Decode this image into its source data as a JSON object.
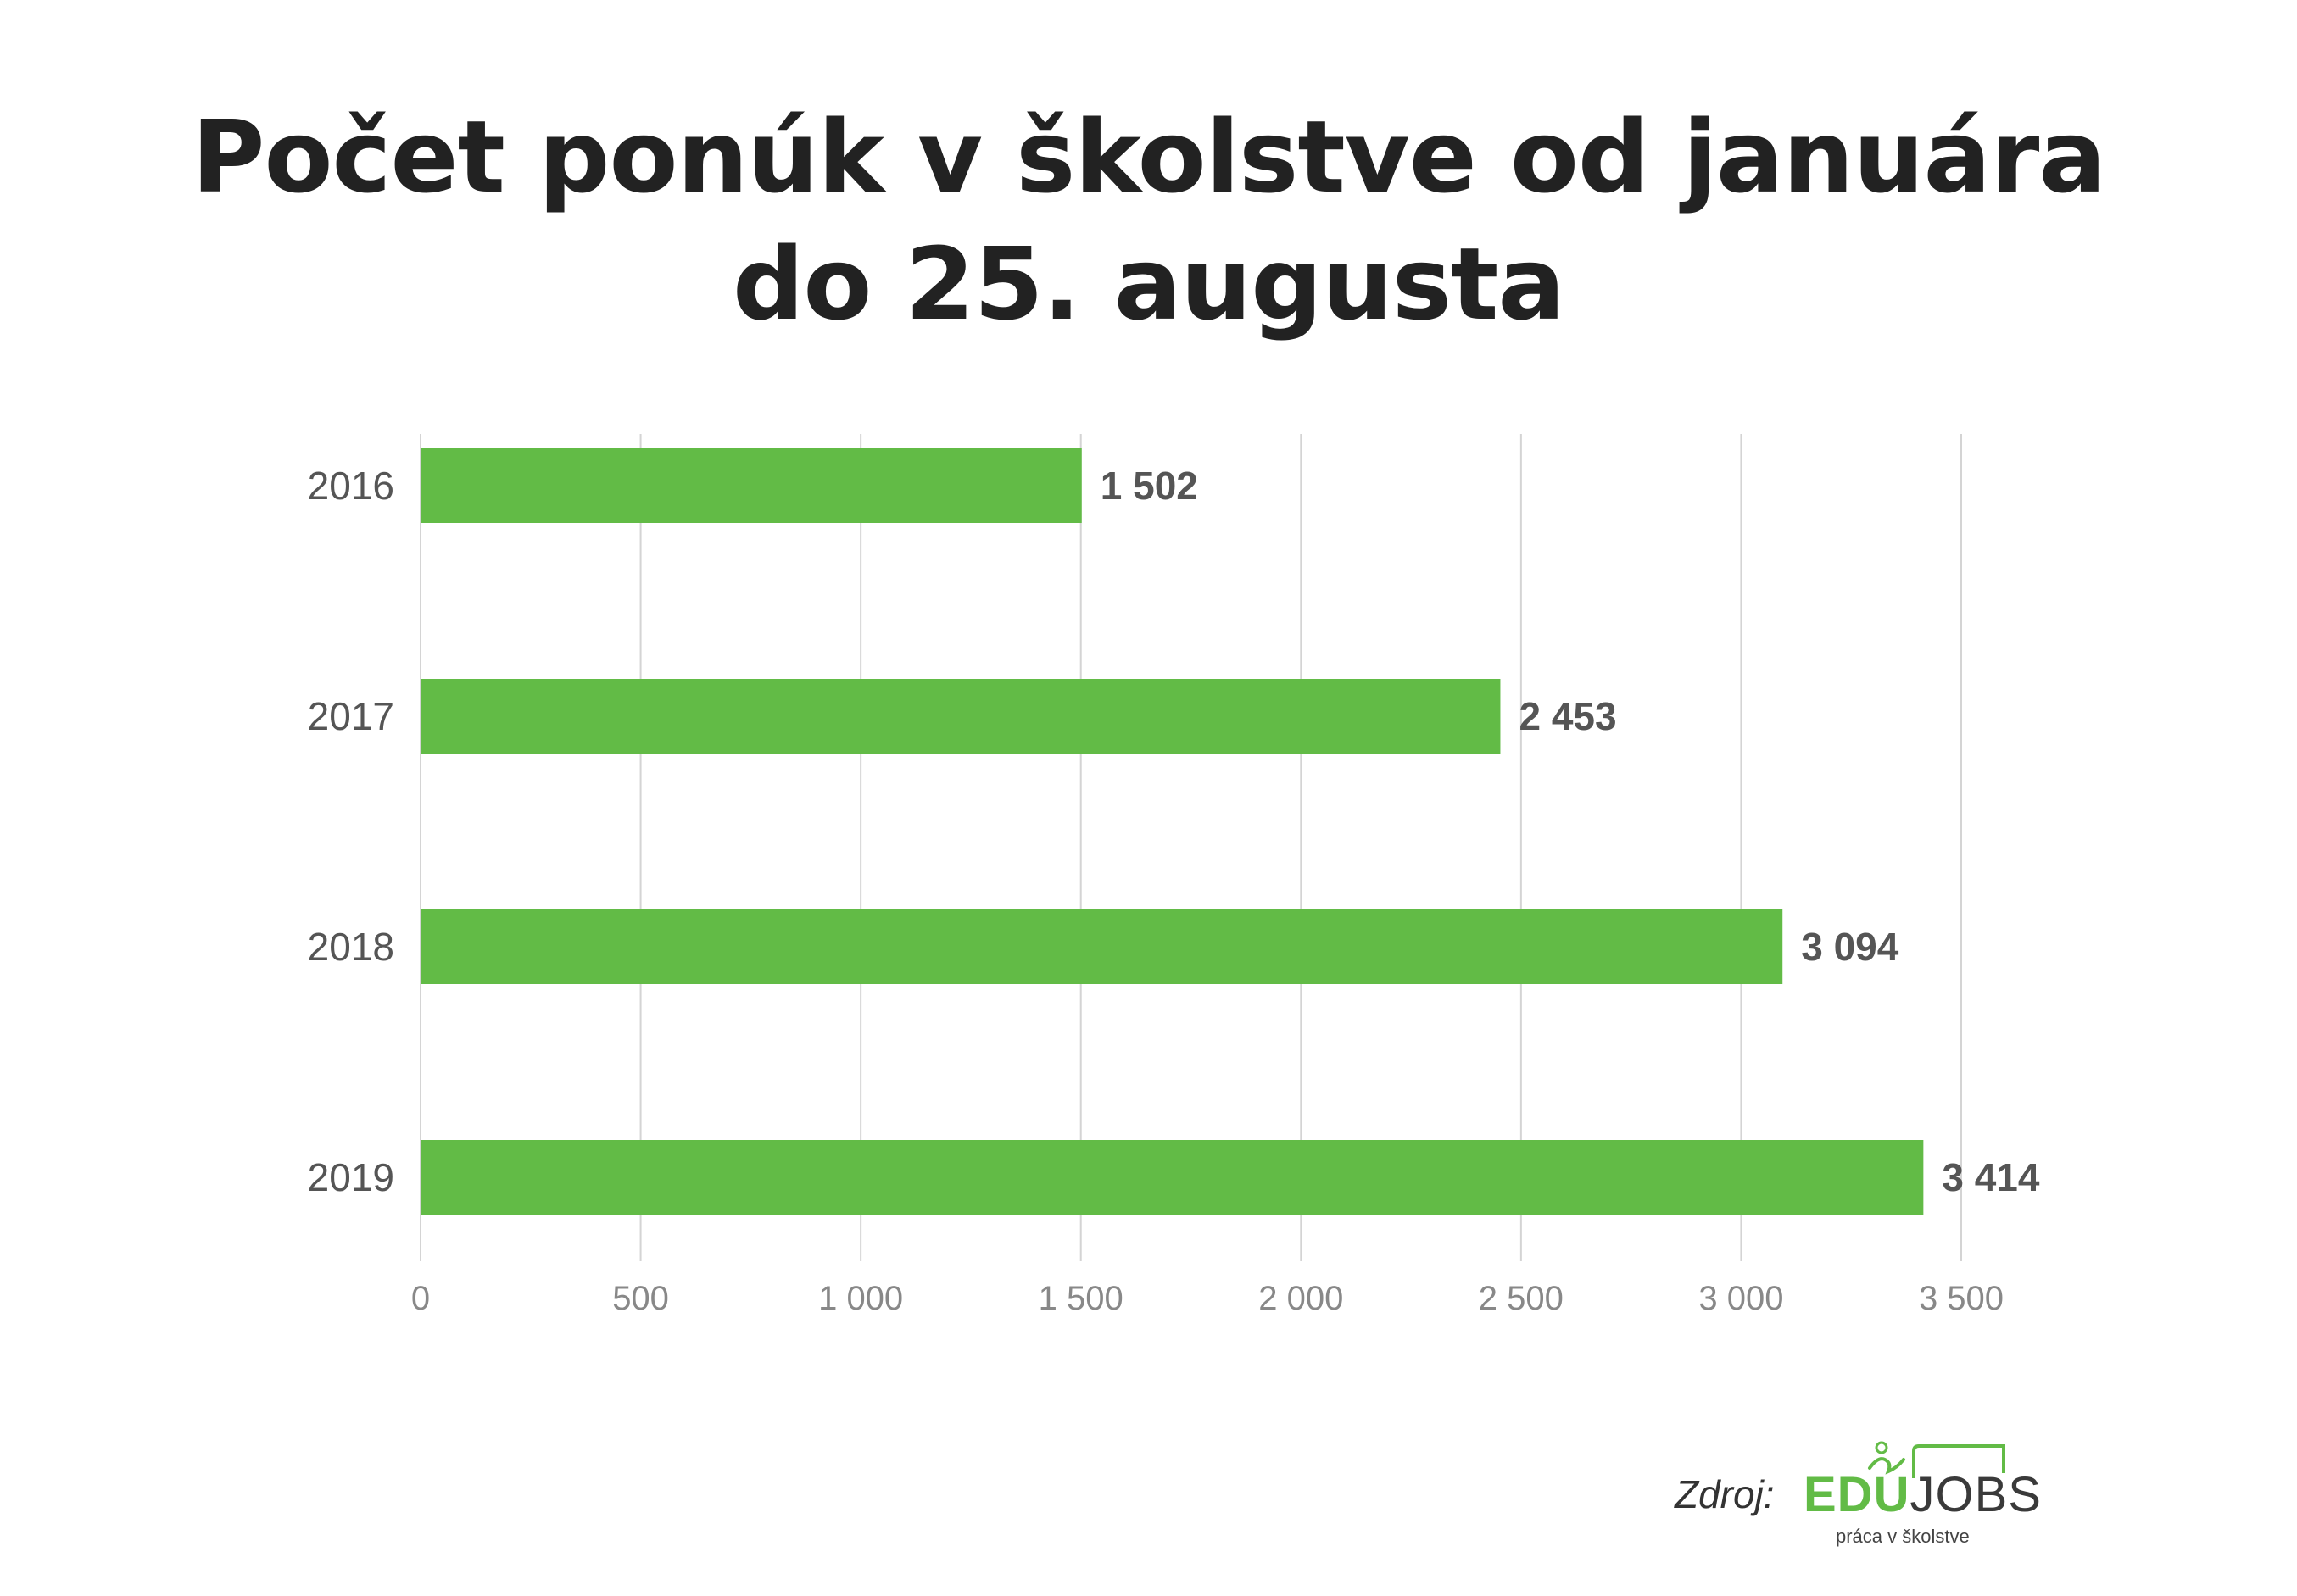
{
  "chart_data": {
    "type": "bar",
    "orientation": "horizontal",
    "title_lines": [
      "Počet ponúk v školstve od januára",
      "do 25. augusta"
    ],
    "categories": [
      "2016",
      "2017",
      "2018",
      "2019"
    ],
    "values": [
      1502,
      2453,
      3094,
      3414
    ],
    "value_labels": [
      "1 502",
      "2 453",
      "3 094",
      "3 414"
    ],
    "xlim": [
      0,
      3500
    ],
    "x_ticks": [
      0,
      500,
      1000,
      1500,
      2000,
      2500,
      3000,
      3500
    ],
    "x_tick_labels": [
      "0",
      "500",
      "1 000",
      "1 500",
      "2 000",
      "2 500",
      "3 000",
      "3 500"
    ],
    "grid": true,
    "bar_color": "#62bb46",
    "grid_color": "#d4d4d4"
  },
  "source": {
    "label": "Zdroj:",
    "logo_edu": "EDU",
    "logo_jobs": "JOBS",
    "logo_tagline": "práca v školstve",
    "logo_icon": "runner-at-board-icon"
  }
}
